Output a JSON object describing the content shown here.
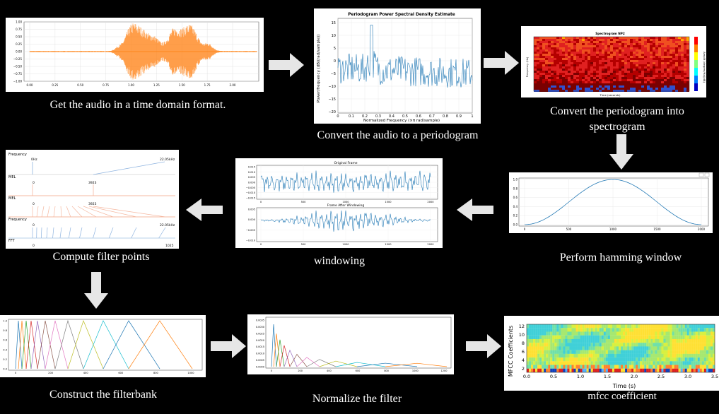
{
  "steps": {
    "s1": {
      "caption": "Get the audio in a time domain format."
    },
    "s2": {
      "caption": "Convert the audio to a periodogram",
      "plot_title": "Periodogram Power Spectral Density Estimate",
      "xlabel": "Normalized Frequency  (×π rad/sample)",
      "ylabel": "Power/frequency (dB/(rad/sample))"
    },
    "s3": {
      "caption_line1": "Convert the periodogram into",
      "caption_line2": "spectrogram",
      "plot_title": "Spectrogram NP2",
      "xlabel": "Time (seconds)",
      "ylabel": "Frequency (Hz)",
      "colorbar_label": "Amplit (degree/Hz)(dB)"
    },
    "s4": {
      "caption": "Perform hamming window"
    },
    "s5": {
      "caption": "windowing",
      "top_title": "Original Frame",
      "bottom_title": "Frame After Windowing"
    },
    "s6": {
      "caption": "Compute filter points",
      "rows": [
        "Frequency",
        "MEL",
        "MEL",
        "Frequency",
        "FFT"
      ],
      "labels": {
        "hz0": "0Hz",
        "hz_max": "22.05kHz",
        "mel0": "0",
        "mel_max": "3923",
        "mel2_0": "0",
        "mel2_max": "3923",
        "f0": "0",
        "f_max": "22.05kHz",
        "fft0": "0",
        "fft_max": "1025"
      }
    },
    "s7": {
      "caption": "Construct the filterbank"
    },
    "s8": {
      "caption": "Normalize the filter"
    },
    "s9": {
      "caption": "mfcc coefficient",
      "ylabel": "MFCC Coefficients",
      "xlabel": "Time (s)"
    }
  },
  "axes": {
    "s1_x": [
      "0.00",
      "0.25",
      "0.50",
      "0.75",
      "1.00",
      "1.25",
      "1.50",
      "1.75",
      "2.00"
    ],
    "s1_y": [
      "1.00",
      "0.75",
      "0.50",
      "0.25",
      "0.00",
      "−0.25",
      "−0.50",
      "−0.75",
      "−1.00"
    ],
    "s2_x": [
      "0",
      "0.1",
      "0.2",
      "0.3",
      "0.4",
      "0.5",
      "0.6",
      "0.7",
      "0.8",
      "0.9",
      "1"
    ],
    "s2_y": [
      "15",
      "10",
      "5",
      "0",
      "−5",
      "−10",
      "−15",
      "−20"
    ],
    "s4_x": [
      "0",
      "500",
      "1000",
      "1500",
      "2000"
    ],
    "s4_y": [
      "1.0",
      "0.8",
      "0.6",
      "0.4",
      "0.2",
      "0.0"
    ],
    "s5_x": [
      "0",
      "500",
      "1000",
      "1500",
      "2000"
    ],
    "s5_top_y": [
      "0.015",
      "0.010",
      "0.005",
      "0.000",
      "−0.005",
      "−0.010",
      "−0.015"
    ],
    "s5_bot_y": [
      "0.005",
      "0.000",
      "−0.005",
      "−0.010"
    ],
    "s7_x": [
      "0",
      "200",
      "400",
      "600",
      "800",
      "1000"
    ],
    "s7_y": [
      "1.0",
      "0.8",
      "0.6",
      "0.4",
      "0.2",
      "0.0"
    ],
    "s8_x": [
      "0",
      "200",
      "400",
      "600",
      "800",
      "1000",
      "1200"
    ],
    "s8_y": [
      "0.0035",
      "0.0030",
      "0.0025",
      "0.0020",
      "0.0015",
      "0.0010",
      "0.0005",
      "0.0000"
    ],
    "s9_x": [
      "0.0",
      "0.5",
      "1.0",
      "1.5",
      "2.0",
      "2.5",
      "3.0",
      "3.5"
    ],
    "s9_y": [
      "12",
      "10",
      "8",
      "6",
      "4",
      "2"
    ]
  },
  "colors": {
    "waveform": "#ff7f0e",
    "line": "#1f77b4",
    "arrow": "#e6e6e6",
    "filter_palette": [
      "#1f77b4",
      "#ff7f0e",
      "#2ca02c",
      "#d62728",
      "#9467bd",
      "#8c564b",
      "#e377c2",
      "#7f7f7f",
      "#bcbd22",
      "#17becf"
    ]
  }
}
